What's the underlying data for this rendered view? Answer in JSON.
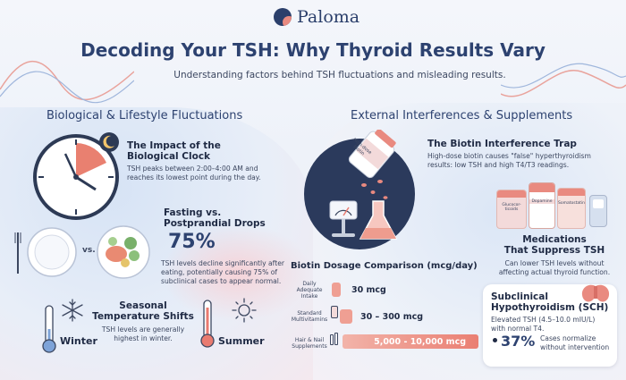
{
  "brand": {
    "name": "Paloma"
  },
  "header": {
    "title": "Decoding Your TSH: Why Thyroid Results Vary",
    "subtitle": "Understanding factors behind TSH fluctuations and misleading results."
  },
  "left": {
    "heading": "Biological & Lifestyle Fluctuations",
    "clock": {
      "title_line1": "The Impact of the",
      "title_line2": "Biological Clock",
      "text_line1": "TSH peaks between 2:00–4:00 AM and",
      "text_line2": "reaches its lowest point during the day."
    },
    "fasting": {
      "title_line1": "Fasting vs.",
      "title_line2": "Postprandial Drops",
      "vs_label": "vs.",
      "stat": "75%",
      "text_line1": "TSH levels decline significantly after",
      "text_line2": "eating, potentially causing 75% of",
      "text_line3": "subclinical cases to appear normal."
    },
    "seasonal": {
      "title_line1": "Seasonal",
      "title_line2": "Temperature Shifts",
      "text_line1": "TSH levels are generally",
      "text_line2": "highest in winter.",
      "winter_label": "Winter",
      "summer_label": "Summer"
    }
  },
  "right": {
    "heading": "External Interferences & Supplements",
    "biotin": {
      "title": "The Biotin Interference Trap",
      "text_line1": "High-dose biotin causes \"false\" hyperthyroidism",
      "text_line2": "results: low TSH and high T4/T3 readings.",
      "bottle_label_line1": "High-dose",
      "bottle_label_line2": "Biotin"
    },
    "medications": {
      "title_line1": "Medications",
      "title_line2": "That Suppress TSH",
      "text_line1": "Can lower TSH levels without",
      "text_line2": "affecting actual thyroid function.",
      "bottle1": "Glucocor-ticoids",
      "bottle2": "Dopamine",
      "bottle3": "Somatostatin"
    },
    "dosage": {
      "heading": "Biotin Dosage Comparison (mcg/day)",
      "rows": [
        {
          "label_line1": "Daily",
          "label_line2": "Adequate",
          "label_line3": "Intake",
          "value": "30 mcg",
          "fill": 0.02
        },
        {
          "label_line1": "Standard",
          "label_line2": "Multivitamins",
          "label_line3": "",
          "value": "30 – 300 mcg",
          "fill": 0.05
        },
        {
          "label_line1": "Hair & Nail",
          "label_line2": "Supplements",
          "label_line3": "",
          "value": "5,000 - 10,000 mcg",
          "fill": 1.0
        }
      ]
    },
    "sch": {
      "title_line1": "Subclinical",
      "title_line2": "Hypothyroidism (SCH)",
      "text_line1": "Elevated TSH (4.5–10.0 mIU/L)",
      "text_line2": "with normal T4.",
      "stat": "37%",
      "stat_text_line1": "Cases normalize",
      "stat_text_line2": "without intervention"
    }
  }
}
